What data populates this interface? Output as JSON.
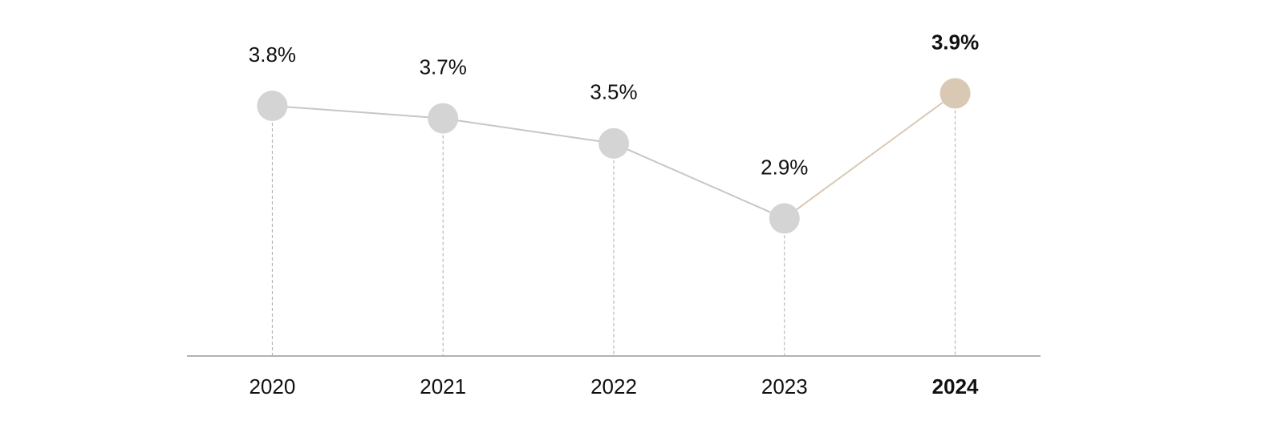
{
  "chart_data": {
    "type": "line",
    "categories": [
      "2020",
      "2021",
      "2022",
      "2023",
      "2024"
    ],
    "values": [
      3.8,
      3.7,
      3.5,
      2.9,
      3.9
    ],
    "value_labels": [
      "3.8%",
      "3.7%",
      "3.5%",
      "2.9%",
      "3.9%"
    ],
    "color": "#d4d4d4",
    "line_color": "#c9c6c2",
    "point_colors": [
      "#d4d4d4",
      "#d4d4d4",
      "#d4d4d4",
      "#d4d4d4",
      "#d9c8b4"
    ],
    "ylim": [
      1.8,
      4.3
    ]
  }
}
